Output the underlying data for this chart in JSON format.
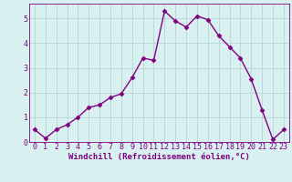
{
  "x": [
    0,
    1,
    2,
    3,
    4,
    5,
    6,
    7,
    8,
    9,
    10,
    11,
    12,
    13,
    14,
    15,
    16,
    17,
    18,
    19,
    20,
    21,
    22,
    23
  ],
  "y": [
    0.5,
    0.15,
    0.5,
    0.7,
    1.0,
    1.4,
    1.5,
    1.8,
    1.95,
    2.6,
    3.4,
    3.3,
    5.3,
    4.9,
    4.65,
    5.1,
    4.95,
    4.3,
    3.85,
    3.4,
    2.55,
    1.3,
    0.1,
    0.5
  ],
  "line_color": "#800080",
  "marker": "D",
  "marker_size": 2.5,
  "bg_color": "#d8f0f0",
  "grid_color": "#b8d4d4",
  "xlabel": "Windchill (Refroidissement éolien,°C)",
  "ylim": [
    0,
    5.6
  ],
  "xlim": [
    -0.5,
    23.5
  ],
  "yticks": [
    0,
    1,
    2,
    3,
    4,
    5
  ],
  "xticks": [
    0,
    1,
    2,
    3,
    4,
    5,
    6,
    7,
    8,
    9,
    10,
    11,
    12,
    13,
    14,
    15,
    16,
    17,
    18,
    19,
    20,
    21,
    22,
    23
  ],
  "tick_color": "#800080",
  "axis_label_color": "#800080",
  "line_width": 1.0,
  "xlabel_fontsize": 6.5,
  "tick_fontsize": 6.0
}
